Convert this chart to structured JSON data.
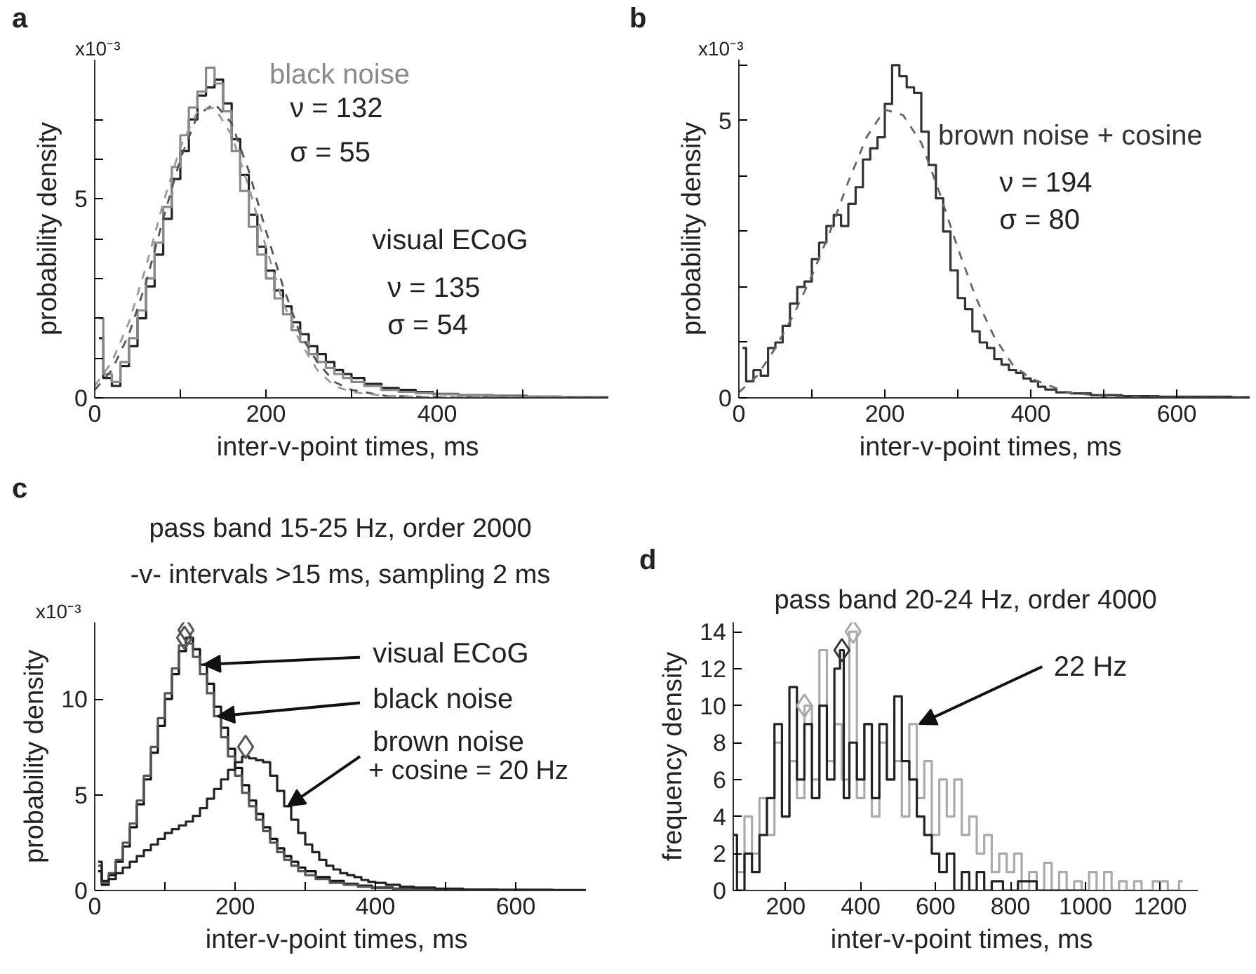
{
  "chart_data": [
    {
      "type": "step",
      "xlabel": "inter-v-point times,  ms",
      "ylabel": "probability density",
      "xlim": [
        0,
        600
      ],
      "ylim": [
        0,
        8.5
      ],
      "xticks": [
        0,
        {
          "value": 100,
          "label": null
        },
        200,
        {
          "value": 300,
          "label": null
        },
        400,
        {
          "value": 500,
          "label": null
        }
      ],
      "yticks": [
        0,
        {
          "value": 1,
          "label": null
        },
        {
          "value": 2,
          "label": null
        },
        {
          "value": 3,
          "label": null
        },
        {
          "value": 4,
          "label": null
        },
        5,
        {
          "value": 6,
          "label": null
        },
        {
          "value": 7,
          "label": null
        }
      ],
      "annotations": [
        "a",
        "x10⁻³",
        "ν = 132",
        "σ = 55",
        "ν = 135",
        "σ = 54"
      ],
      "series": [
        {
          "name": "visual ECoG",
          "color": "#222222",
          "x": [
            5,
            15,
            25,
            35,
            45,
            55,
            65,
            75,
            85,
            95,
            105,
            115,
            125,
            135,
            145,
            155,
            165,
            175,
            185,
            195,
            205,
            215,
            225,
            235,
            245,
            255,
            265,
            275,
            285,
            295,
            305,
            325,
            345,
            365,
            385,
            405,
            445,
            485,
            525,
            565,
            600
          ],
          "values": [
            1.5,
            0.5,
            0.3,
            0.8,
            1.3,
            2.0,
            2.8,
            3.6,
            4.5,
            5.5,
            6.2,
            7.0,
            7.6,
            7.8,
            8.0,
            7.4,
            6.5,
            5.6,
            4.6,
            3.8,
            3.2,
            2.7,
            2.3,
            1.9,
            1.6,
            1.3,
            1.1,
            0.9,
            0.7,
            0.6,
            0.5,
            0.35,
            0.25,
            0.2,
            0.15,
            0.1,
            0.07,
            0.05,
            0.03,
            0.02,
            0.02
          ]
        },
        {
          "name": "black noise",
          "color": "#8a8a8a",
          "x": [
            5,
            15,
            25,
            35,
            45,
            55,
            65,
            75,
            85,
            95,
            105,
            115,
            125,
            135,
            145,
            155,
            165,
            175,
            185,
            195,
            205,
            215,
            225,
            235,
            245,
            255,
            265,
            275,
            285,
            295,
            305,
            325,
            345,
            365,
            385,
            405,
            445,
            485,
            525,
            565,
            600
          ],
          "values": [
            2.0,
            0.6,
            0.4,
            0.9,
            1.5,
            2.2,
            3.0,
            3.9,
            4.8,
            5.8,
            6.6,
            7.3,
            7.7,
            8.3,
            7.9,
            7.2,
            6.2,
            5.2,
            4.3,
            3.6,
            3.0,
            2.5,
            2.1,
            1.7,
            1.4,
            1.1,
            0.9,
            0.75,
            0.6,
            0.5,
            0.4,
            0.3,
            0.2,
            0.15,
            0.12,
            0.09,
            0.06,
            0.04,
            0.03,
            0.02,
            0.02
          ]
        },
        {
          "type": "line",
          "line_style": "dashed",
          "color": "#555555",
          "x": [
            0,
            20,
            40,
            60,
            80,
            100,
            120,
            140,
            160,
            180,
            200,
            220,
            240,
            260,
            280,
            300,
            340,
            400,
            500,
            600
          ],
          "values": [
            0.2,
            0.7,
            1.6,
            2.9,
            4.5,
            6.0,
            7.1,
            7.4,
            6.9,
            5.7,
            4.2,
            2.8,
            1.6,
            0.9,
            0.4,
            0.2,
            0.05,
            0.02,
            0.0,
            0.0
          ]
        },
        {
          "type": "line",
          "line_style": "dashed",
          "color": "#999999",
          "x": [
            0,
            20,
            40,
            60,
            80,
            100,
            120,
            140,
            160,
            180,
            200,
            220,
            240,
            260,
            280,
            300,
            340,
            400,
            500,
            600
          ],
          "values": [
            0.3,
            0.9,
            1.9,
            3.3,
            4.9,
            6.3,
            7.2,
            7.3,
            6.6,
            5.3,
            3.8,
            2.4,
            1.4,
            0.7,
            0.3,
            0.15,
            0.05,
            0.02,
            0.0,
            0.0
          ]
        }
      ]
    },
    {
      "type": "step",
      "xlabel": "inter-v-point times,  ms",
      "ylabel": "probability density",
      "xlim": [
        0,
        700
      ],
      "ylim": [
        0,
        6.1
      ],
      "xticks": [
        0,
        {
          "value": 100,
          "label": null
        },
        200,
        {
          "value": 300,
          "label": null
        },
        400,
        {
          "value": 500,
          "label": null
        },
        600
      ],
      "yticks": [
        0,
        {
          "value": 1,
          "label": null
        },
        {
          "value": 2,
          "label": null
        },
        {
          "value": 3,
          "label": null
        },
        {
          "value": 4,
          "label": null
        },
        5,
        {
          "value": 6,
          "label": null
        }
      ],
      "annotations": [
        "b",
        "x10⁻³",
        "ν = 194",
        "σ = 80"
      ],
      "series": [
        {
          "name": "brown noise + cosine",
          "color": "#333333",
          "x": [
            5,
            15,
            25,
            35,
            45,
            55,
            65,
            75,
            85,
            95,
            105,
            115,
            125,
            135,
            145,
            155,
            165,
            175,
            185,
            195,
            205,
            215,
            225,
            235,
            245,
            255,
            265,
            275,
            285,
            295,
            305,
            315,
            325,
            335,
            345,
            355,
            365,
            375,
            385,
            395,
            405,
            415,
            425,
            445,
            465,
            500,
            550,
            600,
            650,
            700
          ],
          "values": [
            0.9,
            0.3,
            0.5,
            0.4,
            0.9,
            1.0,
            1.3,
            1.7,
            2.0,
            2.1,
            2.5,
            2.8,
            3.1,
            3.3,
            3.1,
            3.5,
            3.8,
            4.3,
            4.5,
            4.7,
            5.3,
            6.0,
            5.8,
            5.6,
            5.5,
            4.8,
            4.2,
            3.6,
            3.0,
            2.3,
            1.8,
            1.6,
            1.2,
            1.0,
            0.9,
            0.7,
            0.6,
            0.5,
            0.45,
            0.35,
            0.3,
            0.2,
            0.15,
            0.1,
            0.08,
            0.05,
            0.03,
            0.02,
            0.02,
            0.01
          ]
        },
        {
          "type": "line",
          "line_style": "dashed",
          "color": "#666666",
          "x": [
            0,
            25,
            50,
            75,
            100,
            125,
            150,
            175,
            200,
            225,
            250,
            275,
            300,
            325,
            350,
            375,
            400,
            450,
            500,
            600,
            700
          ],
          "values": [
            0.1,
            0.4,
            0.9,
            1.5,
            2.2,
            3.0,
            3.9,
            4.7,
            5.2,
            5.1,
            4.6,
            3.7,
            2.7,
            1.8,
            1.1,
            0.6,
            0.35,
            0.1,
            0.03,
            0.0,
            0.0
          ]
        }
      ]
    },
    {
      "type": "step",
      "title": "pass band 15-25 Hz, order 2000",
      "subtitle": "-v- intervals >15 ms, sampling 2 ms",
      "xlabel": "inter-v-point times,  ms",
      "ylabel": "probability density",
      "xlim": [
        0,
        700
      ],
      "ylim": [
        0,
        14
      ],
      "xticks": [
        0,
        {
          "value": 100,
          "label": null
        },
        200,
        {
          "value": 300,
          "label": null
        },
        400,
        {
          "value": 500,
          "label": null
        },
        600
      ],
      "yticks": [
        0,
        5,
        10
      ],
      "annotations": [
        "c",
        "x10⁻³",
        "+ cosine = 20 Hz",
        {
          "text": "visual ECoG",
          "x": 155,
          "y": 11.8
        },
        {
          "text": "black noise",
          "x": 175,
          "y": 9.1
        },
        {
          "text": "brown noise",
          "x": 275,
          "y": 4.4
        }
      ],
      "series": [
        {
          "color": "#111111",
          "x": [
            5,
            15,
            25,
            35,
            45,
            55,
            65,
            75,
            85,
            95,
            105,
            115,
            125,
            135,
            145,
            155,
            165,
            175,
            185,
            195,
            205,
            215,
            225,
            235,
            245,
            255,
            265,
            275,
            285,
            295,
            305,
            325,
            345,
            365,
            385,
            405,
            445,
            485,
            545,
            605,
            700
          ],
          "values": [
            1.0,
            0.3,
            0.8,
            1.5,
            2.3,
            3.3,
            4.5,
            5.8,
            7.2,
            8.6,
            10.0,
            11.3,
            12.5,
            13.2,
            12.6,
            11.8,
            10.8,
            9.6,
            8.5,
            7.4,
            6.4,
            5.5,
            4.7,
            4.0,
            3.3,
            2.7,
            2.2,
            1.8,
            1.5,
            1.2,
            1.0,
            0.7,
            0.5,
            0.35,
            0.25,
            0.15,
            0.1,
            0.05,
            0.03,
            0.02,
            0.01
          ]
        },
        {
          "color": "#555555",
          "x": [
            5,
            15,
            25,
            35,
            45,
            55,
            65,
            75,
            85,
            95,
            105,
            115,
            125,
            135,
            145,
            155,
            165,
            175,
            185,
            195,
            205,
            215,
            225,
            235,
            245,
            255,
            265,
            275,
            285,
            295,
            305,
            325,
            345,
            365,
            385,
            405,
            445,
            485,
            545,
            605,
            700
          ],
          "values": [
            1.3,
            0.4,
            0.9,
            1.6,
            2.5,
            3.5,
            4.7,
            6.0,
            7.5,
            9.0,
            10.3,
            11.6,
            12.8,
            12.9,
            12.2,
            11.3,
            10.3,
            9.1,
            8.0,
            7.0,
            6.0,
            5.1,
            4.4,
            3.7,
            3.1,
            2.5,
            2.0,
            1.6,
            1.3,
            1.0,
            0.8,
            0.6,
            0.4,
            0.3,
            0.2,
            0.12,
            0.08,
            0.05,
            0.03,
            0.02,
            0.01
          ]
        },
        {
          "color": "#222222",
          "x": [
            5,
            15,
            25,
            35,
            45,
            55,
            65,
            75,
            85,
            95,
            105,
            115,
            125,
            135,
            145,
            155,
            165,
            175,
            185,
            195,
            205,
            215,
            225,
            235,
            245,
            255,
            265,
            275,
            285,
            295,
            305,
            315,
            325,
            335,
            345,
            355,
            365,
            375,
            385,
            395,
            405,
            425,
            445,
            465,
            505,
            545,
            605,
            700
          ],
          "values": [
            1.5,
            0.5,
            0.6,
            0.9,
            1.2,
            1.5,
            1.8,
            2.1,
            2.4,
            2.7,
            3.0,
            3.2,
            3.4,
            3.6,
            3.9,
            4.3,
            4.8,
            5.3,
            5.8,
            6.3,
            6.7,
            7.0,
            6.9,
            6.8,
            6.7,
            6.0,
            5.2,
            4.4,
            3.7,
            3.0,
            2.4,
            2.0,
            1.6,
            1.3,
            1.1,
            0.9,
            0.8,
            0.7,
            0.55,
            0.45,
            0.4,
            0.3,
            0.2,
            0.15,
            0.1,
            0.05,
            0.03,
            0.02
          ]
        },
        {
          "type": "scatter",
          "marker": "diamond",
          "color": "#555555",
          "x": [
            130,
            128,
            215
          ],
          "values": [
            13.6,
            13.2,
            7.5
          ]
        }
      ]
    },
    {
      "type": "step",
      "title": "pass band 20-24 Hz, order 4000",
      "xlabel": "inter-v-point times,  ms",
      "ylabel": "frequency density",
      "xlim": [
        60,
        1300
      ],
      "ylim": [
        0,
        14.5
      ],
      "xticks": [
        200,
        400,
        600,
        800,
        1000,
        1200
      ],
      "yticks": [
        0,
        2,
        4,
        6,
        8,
        10,
        12,
        14
      ],
      "annotations": [
        "d",
        {
          "text": "22 Hz",
          "x": 556,
          "y": 9.0
        }
      ],
      "series": [
        {
          "color": "#aaaaaa",
          "x": [
            60,
            80,
            100,
            120,
            140,
            160,
            180,
            200,
            220,
            240,
            260,
            280,
            300,
            320,
            340,
            360,
            380,
            400,
            420,
            440,
            460,
            480,
            500,
            520,
            540,
            560,
            580,
            600,
            620,
            640,
            660,
            680,
            700,
            720,
            740,
            760,
            780,
            800,
            820,
            840,
            860,
            880,
            900,
            920,
            940,
            960,
            980,
            1000,
            1020,
            1040,
            1060,
            1080,
            1100,
            1120,
            1140,
            1160,
            1200,
            1240,
            1260
          ],
          "values": [
            3,
            1,
            4,
            2,
            5,
            3,
            8,
            4,
            7,
            5,
            10,
            6,
            13,
            7,
            9,
            6,
            14,
            5,
            9,
            4,
            8,
            6,
            7,
            4,
            9,
            5,
            7,
            3,
            6,
            4,
            6,
            3,
            4,
            2,
            3,
            1,
            2,
            1,
            2,
            0,
            1,
            0,
            1.5,
            0,
            1,
            0,
            0.5,
            0,
            1,
            0,
            1,
            0,
            0.5,
            0,
            0.5,
            0,
            0.5,
            0,
            0.5
          ]
        },
        {
          "color": "#222222",
          "x": [
            60,
            80,
            100,
            120,
            140,
            160,
            180,
            200,
            220,
            240,
            260,
            280,
            300,
            320,
            340,
            350,
            360,
            380,
            400,
            420,
            440,
            460,
            480,
            500,
            520,
            540,
            560,
            580,
            600,
            620,
            640,
            660,
            680,
            700,
            720,
            740,
            760,
            800,
            840,
            900,
            1000
          ],
          "values": [
            3,
            0,
            2,
            1,
            3,
            5,
            9,
            4,
            11,
            6,
            9,
            5,
            10,
            6,
            12,
            13,
            5,
            8,
            6,
            9,
            5,
            9,
            6,
            10.5,
            7,
            6,
            4,
            3,
            2,
            1,
            2,
            0,
            1,
            0,
            1,
            0,
            0.5,
            0,
            0.5,
            0,
            0
          ]
        },
        {
          "type": "scatter",
          "marker": "diamond",
          "color": "#aaaaaa",
          "x": [
            250,
            380
          ],
          "values": [
            10,
            14
          ]
        },
        {
          "type": "scatter",
          "marker": "diamond",
          "color": "#333333",
          "x": [
            350
          ],
          "values": [
            13
          ]
        }
      ]
    }
  ]
}
